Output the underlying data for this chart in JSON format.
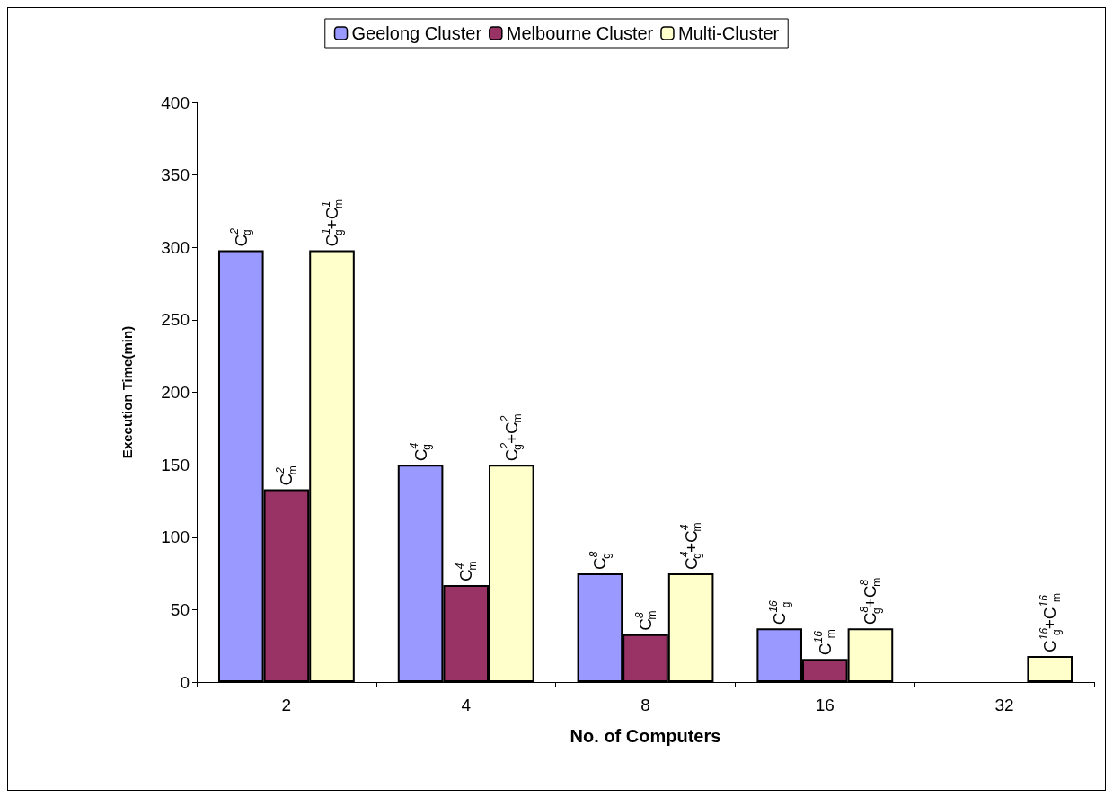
{
  "chart_data": {
    "type": "bar",
    "xlabel": "No. of Computers",
    "ylabel": "Execution Time(min)",
    "categories": [
      "2",
      "4",
      "8",
      "16",
      "32"
    ],
    "ylim": [
      0,
      400
    ],
    "yticks": [
      0,
      50,
      100,
      150,
      200,
      250,
      300,
      350,
      400
    ],
    "grid": false,
    "legend": "top",
    "series": [
      {
        "name": "Geelong Cluster",
        "color": "#9999ff",
        "values": [
          298,
          150,
          75,
          37,
          null
        ]
      },
      {
        "name": "Melbourne Cluster",
        "color": "#993366",
        "values": [
          133,
          67,
          33,
          16,
          null
        ]
      },
      {
        "name": "Multi-Cluster",
        "color": "#ffffcc",
        "values": [
          298,
          150,
          75,
          37,
          18
        ]
      }
    ],
    "annotations": [
      "C$^{2}$$_{g}$",
      "C$^{2}$$_{m}$",
      "C$^{1}$$_{g}$+C$^{1}$$_{m}$",
      "C$^{4}$$_{g}$",
      "C$^{4}$$_{m}$",
      "C$^{2}$$_{g}$+C$^{2}$$_{m}$",
      "C$^{8}$$_{g}$",
      "C$^{8}$$_{m}$",
      "C$^{4}$$_{g}$+C$^{4}$$_{m}$",
      "C$^{16}$$_{g}$",
      "C$^{16}$$_{m}$",
      "C$^{8}$$_{g}$+C$^{8}$$_{m}$",
      "C$^{16}$$_{g}$+C$^{16}$$_{m}$"
    ]
  }
}
